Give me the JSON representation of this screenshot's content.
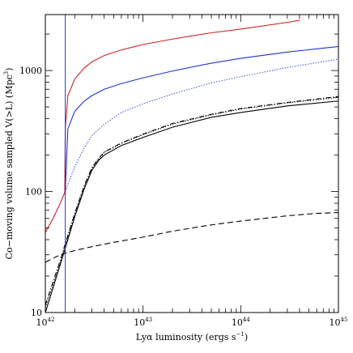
{
  "chart_data": {
    "type": "line",
    "xlabel": "Lyα luminosity (ergs s",
    "xlabel_exp": "−1",
    "xlabel_tail": ")",
    "ylabel": "Co−moving volume sampled V(>L) (Mpc",
    "ylabel_exp": "3",
    "ylabel_tail": ")",
    "x_scale": "log",
    "y_scale": "log",
    "xlim": [
      1e+42,
      1e+45
    ],
    "ylim": [
      10,
      2900
    ],
    "x_ticks": [
      {
        "value": 1e+42,
        "base": "10",
        "exp": "42"
      },
      {
        "value": 1e+43,
        "base": "10",
        "exp": "43"
      },
      {
        "value": 1e+44,
        "base": "10",
        "exp": "44"
      },
      {
        "value": 1e+45,
        "base": "10",
        "exp": "45"
      }
    ],
    "y_ticks": [
      {
        "value": 10,
        "label": "10"
      },
      {
        "value": 100,
        "label": "100"
      },
      {
        "value": 1000,
        "label": "1000"
      }
    ],
    "vline": {
      "x": 1.6e+42,
      "color": "#2233cc"
    },
    "series": [
      {
        "color": "#cc2222",
        "style": "solid",
        "points": [
          [
            1e+42,
            46
          ],
          [
            1.2e+42,
            60
          ],
          [
            1.4e+42,
            78
          ],
          [
            1.58e+42,
            98
          ],
          [
            1.6e+42,
            330
          ],
          [
            1.7e+42,
            620
          ],
          [
            2e+42,
            850
          ],
          [
            2.5e+42,
            1050
          ],
          [
            3e+42,
            1180
          ],
          [
            4e+42,
            1330
          ],
          [
            6e+42,
            1480
          ],
          [
            1e+43,
            1640
          ],
          [
            2e+43,
            1820
          ],
          [
            5e+43,
            2050
          ],
          [
            1e+44,
            2200
          ],
          [
            3e+44,
            2500
          ],
          [
            4e+44,
            2600
          ]
        ]
      },
      {
        "color": "#2233cc",
        "style": "solid",
        "points": [
          [
            1.6e+42,
            100
          ],
          [
            1.7e+42,
            330
          ],
          [
            2e+42,
            460
          ],
          [
            2.5e+42,
            560
          ],
          [
            3e+42,
            620
          ],
          [
            4e+42,
            700
          ],
          [
            6e+42,
            780
          ],
          [
            1e+43,
            870
          ],
          [
            2e+43,
            990
          ],
          [
            5e+43,
            1150
          ],
          [
            1e+44,
            1260
          ],
          [
            3e+44,
            1420
          ],
          [
            1e+45,
            1580
          ]
        ]
      },
      {
        "color": "#2233cc",
        "style": "dotted",
        "points": [
          [
            1.6e+42,
            100
          ],
          [
            2e+42,
            160
          ],
          [
            2.5e+42,
            230
          ],
          [
            3e+42,
            290
          ],
          [
            4e+42,
            360
          ],
          [
            6e+42,
            450
          ],
          [
            1e+43,
            530
          ],
          [
            2e+43,
            640
          ],
          [
            5e+43,
            790
          ],
          [
            1e+44,
            890
          ],
          [
            3e+44,
            1060
          ],
          [
            1e+45,
            1240
          ]
        ]
      },
      {
        "color": "#000000",
        "style": "solid",
        "points": [
          [
            1e+42,
            10
          ],
          [
            1.2e+42,
            16
          ],
          [
            1.4e+42,
            24
          ],
          [
            1.6e+42,
            34
          ],
          [
            2e+42,
            62
          ],
          [
            2.5e+42,
            105
          ],
          [
            3e+42,
            150
          ],
          [
            3.5e+42,
            180
          ],
          [
            4e+42,
            200
          ],
          [
            6e+42,
            240
          ],
          [
            1e+43,
            280
          ],
          [
            2e+43,
            340
          ],
          [
            5e+43,
            410
          ],
          [
            1e+44,
            450
          ],
          [
            3e+44,
            510
          ],
          [
            1e+45,
            560
          ]
        ]
      },
      {
        "color": "#000000",
        "style": "dotted",
        "points": [
          [
            1e+42,
            11
          ],
          [
            1.2e+42,
            17
          ],
          [
            1.4e+42,
            25
          ],
          [
            1.6e+42,
            36
          ],
          [
            2e+42,
            65
          ],
          [
            2.5e+42,
            110
          ],
          [
            3e+42,
            155
          ],
          [
            3.5e+42,
            185
          ],
          [
            4e+42,
            210
          ],
          [
            6e+42,
            250
          ],
          [
            1e+43,
            295
          ],
          [
            2e+43,
            360
          ],
          [
            5e+43,
            430
          ],
          [
            1e+44,
            480
          ],
          [
            3e+44,
            540
          ],
          [
            1e+45,
            600
          ]
        ]
      },
      {
        "color": "#000000",
        "style": "dashdot",
        "points": [
          [
            1e+42,
            11.5
          ],
          [
            1.2e+42,
            18
          ],
          [
            1.4e+42,
            26
          ],
          [
            1.6e+42,
            37
          ],
          [
            2e+42,
            66
          ],
          [
            2.5e+42,
            112
          ],
          [
            3e+42,
            158
          ],
          [
            3.5e+42,
            187
          ],
          [
            4e+42,
            212
          ],
          [
            6e+42,
            252
          ],
          [
            1e+43,
            298
          ],
          [
            2e+43,
            365
          ],
          [
            5e+43,
            435
          ],
          [
            1e+44,
            485
          ],
          [
            3e+44,
            545
          ],
          [
            1e+45,
            610
          ]
        ]
      },
      {
        "color": "#000000",
        "style": "dashed",
        "points": [
          [
            1e+42,
            26
          ],
          [
            1.3e+42,
            29
          ],
          [
            1.6e+42,
            31
          ],
          [
            2e+42,
            32.5
          ],
          [
            3e+42,
            35
          ],
          [
            5e+42,
            38
          ],
          [
            1e+43,
            42
          ],
          [
            2e+43,
            47
          ],
          [
            5e+43,
            53
          ],
          [
            1e+44,
            57
          ],
          [
            3e+44,
            63
          ],
          [
            6e+44,
            66
          ],
          [
            1e+45,
            67
          ]
        ]
      }
    ]
  }
}
